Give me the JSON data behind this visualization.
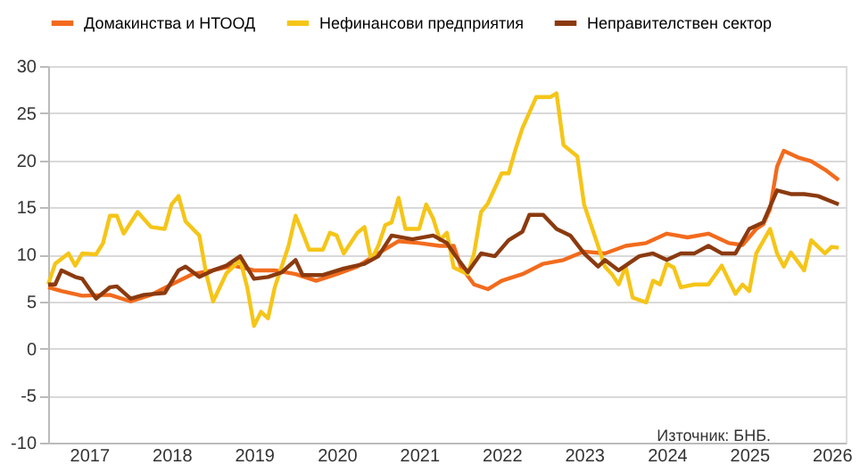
{
  "chart_data": {
    "type": "line",
    "xlim": [
      "2017-01",
      "2026-09"
    ],
    "ylim": [
      -10,
      30
    ],
    "yticks": [
      -10,
      -5,
      0,
      5,
      10,
      15,
      20,
      25,
      30
    ],
    "xticks": [
      {
        "value": "2017-07",
        "label": "2017"
      },
      {
        "value": "2018-07",
        "label": "2018"
      },
      {
        "value": "2019-07",
        "label": "2019"
      },
      {
        "value": "2020-07",
        "label": "2020"
      },
      {
        "value": "2021-07",
        "label": "2021"
      },
      {
        "value": "2022-07",
        "label": "2022"
      },
      {
        "value": "2023-07",
        "label": "2023"
      },
      {
        "value": "2024-07",
        "label": "2024"
      },
      {
        "value": "2025-07",
        "label": "2025"
      },
      {
        "value": "2026-07",
        "label": "2026"
      }
    ],
    "grid": "y",
    "legend": "top",
    "marker": "none",
    "line_style": "solid",
    "annotations": [
      "Източник: БНБ."
    ],
    "series": [
      {
        "name": "Домакинства и НТООД",
        "color": "#f26b1d",
        "x": [
          "2017-01",
          "2017-03",
          "2017-06",
          "2017-10",
          "2018-01",
          "2018-04",
          "2018-07",
          "2018-10",
          "2019-01",
          "2019-04",
          "2019-07",
          "2019-10",
          "2020-01",
          "2020-04",
          "2020-07",
          "2020-10",
          "2021-01",
          "2021-04",
          "2021-07",
          "2021-10",
          "2021-12",
          "2022-01",
          "2022-03",
          "2022-05",
          "2022-07",
          "2022-10",
          "2023-01",
          "2023-04",
          "2023-07",
          "2023-10",
          "2024-01",
          "2024-04",
          "2024-07",
          "2024-10",
          "2025-01",
          "2025-04",
          "2025-06",
          "2025-08",
          "2025-09",
          "2025-10",
          "2025-11",
          "2025-12",
          "2026-02",
          "2026-04",
          "2026-06",
          "2026-08"
        ],
        "values": [
          6.5,
          6.1,
          5.6,
          5.7,
          5.0,
          5.7,
          6.8,
          7.9,
          8.3,
          8.8,
          8.3,
          8.3,
          7.9,
          7.2,
          7.9,
          8.7,
          10.1,
          11.4,
          11.2,
          10.9,
          10.9,
          8.7,
          6.8,
          6.3,
          7.2,
          7.9,
          9.0,
          9.4,
          10.3,
          10.1,
          10.9,
          11.2,
          12.2,
          11.8,
          12.2,
          11.2,
          11.0,
          12.7,
          13.2,
          14.8,
          19.3,
          21.0,
          20.3,
          19.9,
          19.0,
          17.9
        ]
      },
      {
        "name": "Нефинансови предприятия",
        "color": "#f5c518",
        "x": [
          "2017-01",
          "2017-02",
          "2017-04",
          "2017-05",
          "2017-06",
          "2017-08",
          "2017-09",
          "2017-10",
          "2017-11",
          "2017-12",
          "2018-02",
          "2018-04",
          "2018-06",
          "2018-07",
          "2018-08",
          "2018-09",
          "2018-11",
          "2018-12",
          "2019-01",
          "2019-03",
          "2019-05",
          "2019-06",
          "2019-07",
          "2019-08",
          "2019-09",
          "2019-10",
          "2019-12",
          "2020-01",
          "2020-02",
          "2020-03",
          "2020-05",
          "2020-06",
          "2020-07",
          "2020-08",
          "2020-10",
          "2020-11",
          "2020-12",
          "2021-01",
          "2021-02",
          "2021-03",
          "2021-04",
          "2021-05",
          "2021-07",
          "2021-08",
          "2021-09",
          "2021-10",
          "2021-11",
          "2021-12",
          "2022-02",
          "2022-03",
          "2022-04",
          "2022-05",
          "2022-07",
          "2022-08",
          "2022-09",
          "2022-10",
          "2022-12",
          "2023-02",
          "2023-03",
          "2023-04",
          "2023-06",
          "2023-07",
          "2023-09",
          "2023-10",
          "2023-11",
          "2023-12",
          "2024-01",
          "2024-02",
          "2024-04",
          "2024-05",
          "2024-06",
          "2024-07",
          "2024-08",
          "2024-09",
          "2024-11",
          "2025-01",
          "2025-03",
          "2025-05",
          "2025-06",
          "2025-07",
          "2025-08",
          "2025-10",
          "2025-11",
          "2025-12",
          "2026-01",
          "2026-03",
          "2026-04",
          "2026-06",
          "2026-07",
          "2026-08"
        ],
        "values": [
          6.8,
          9.0,
          10.1,
          8.8,
          10.1,
          10.0,
          11.2,
          14.1,
          14.1,
          12.2,
          14.5,
          12.9,
          12.7,
          15.3,
          16.2,
          13.5,
          12.0,
          8.0,
          5.0,
          8.0,
          9.4,
          6.5,
          2.4,
          3.9,
          3.2,
          6.5,
          10.9,
          14.1,
          12.3,
          10.5,
          10.5,
          12.3,
          12.0,
          10.1,
          12.3,
          12.9,
          9.4,
          10.9,
          13.1,
          13.4,
          16.0,
          12.7,
          12.7,
          15.3,
          13.8,
          11.5,
          12.3,
          8.6,
          7.9,
          10.1,
          14.5,
          15.4,
          18.6,
          18.6,
          21.2,
          23.4,
          26.7,
          26.7,
          27.1,
          21.6,
          20.4,
          15.3,
          10.9,
          8.7,
          7.9,
          6.8,
          8.7,
          5.4,
          4.9,
          7.2,
          6.8,
          9.0,
          8.6,
          6.5,
          6.8,
          6.8,
          8.8,
          5.8,
          6.8,
          6.1,
          10.1,
          12.7,
          10.1,
          8.7,
          10.2,
          8.3,
          11.5,
          10.1,
          10.8,
          10.7
        ]
      },
      {
        "name": "Неправителствен сектор",
        "color": "#8b3a0f",
        "x": [
          "2017-01",
          "2017-02",
          "2017-03",
          "2017-05",
          "2017-06",
          "2017-08",
          "2017-10",
          "2017-11",
          "2018-01",
          "2018-03",
          "2018-06",
          "2018-08",
          "2018-09",
          "2018-11",
          "2019-01",
          "2019-03",
          "2019-05",
          "2019-07",
          "2019-09",
          "2019-11",
          "2020-01",
          "2020-02",
          "2020-05",
          "2020-08",
          "2020-11",
          "2021-01",
          "2021-03",
          "2021-06",
          "2021-09",
          "2021-11",
          "2021-12",
          "2022-02",
          "2022-04",
          "2022-06",
          "2022-08",
          "2022-10",
          "2022-11",
          "2023-01",
          "2023-03",
          "2023-05",
          "2023-07",
          "2023-09",
          "2023-10",
          "2023-12",
          "2024-03",
          "2024-05",
          "2024-07",
          "2024-09",
          "2024-11",
          "2025-01",
          "2025-03",
          "2025-05",
          "2025-07",
          "2025-09",
          "2025-11",
          "2026-01",
          "2026-03",
          "2026-05",
          "2026-08"
        ],
        "values": [
          6.8,
          6.8,
          8.3,
          7.6,
          7.4,
          5.3,
          6.5,
          6.6,
          5.3,
          5.7,
          5.9,
          8.3,
          8.7,
          7.6,
          8.3,
          8.8,
          9.8,
          7.4,
          7.6,
          8.1,
          9.4,
          7.8,
          7.8,
          8.5,
          9.0,
          9.8,
          12.0,
          11.6,
          12.0,
          11.2,
          10.1,
          8.1,
          10.1,
          9.8,
          11.5,
          12.4,
          14.2,
          14.2,
          12.7,
          12.0,
          10.1,
          8.7,
          9.4,
          8.3,
          9.8,
          10.1,
          9.4,
          10.1,
          10.1,
          10.9,
          10.1,
          10.1,
          12.7,
          13.4,
          16.8,
          16.4,
          16.4,
          16.2,
          15.3
        ]
      }
    ]
  }
}
